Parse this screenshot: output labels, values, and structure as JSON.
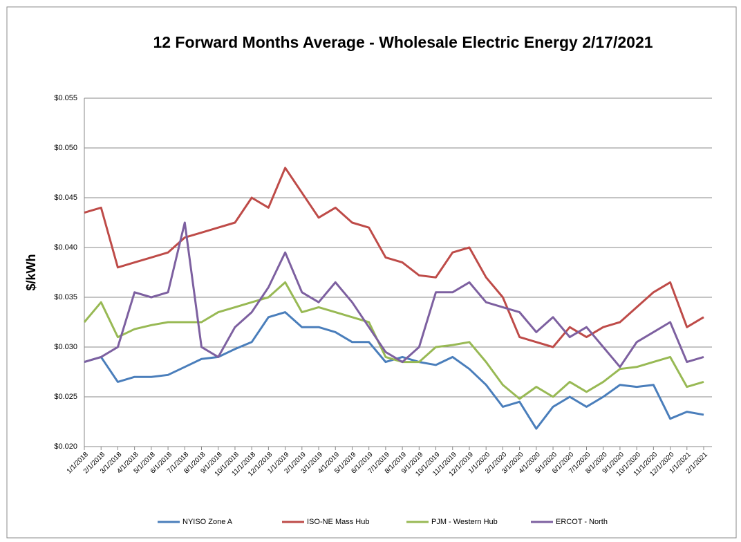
{
  "chart_data": {
    "type": "line",
    "title": "12 Forward Months Average - Wholesale Electric Energy 2/17/2021",
    "y_label": "$/kWh",
    "x": [
      "1/1/2018",
      "2/1/2018",
      "3/1/2018",
      "4/1/2018",
      "5/1/2018",
      "6/1/2018",
      "7/1/2018",
      "8/1/2018",
      "9/1/2018",
      "10/1/2018",
      "11/1/2018",
      "12/1/2018",
      "1/1/2019",
      "2/1/2019",
      "3/1/2019",
      "4/1/2019",
      "5/1/2019",
      "6/1/2019",
      "7/1/2019",
      "8/1/2019",
      "9/1/2019",
      "10/1/2019",
      "11/1/2019",
      "12/1/2019",
      "1/1/2020",
      "2/1/2020",
      "3/1/2020",
      "4/1/2020",
      "5/1/2020",
      "6/1/2020",
      "7/1/2020",
      "8/1/2020",
      "9/1/2020",
      "10/1/2020",
      "11/1/2020",
      "12/1/2020",
      "1/1/2021",
      "2/1/2021"
    ],
    "series": [
      {
        "name": "NYISO Zone A",
        "color": "#4a7ebb",
        "values": [
          0.0285,
          0.029,
          0.0265,
          0.027,
          0.027,
          0.0272,
          0.028,
          0.0288,
          0.029,
          0.0298,
          0.0305,
          0.033,
          0.0335,
          0.032,
          0.032,
          0.0315,
          0.0305,
          0.0305,
          0.0285,
          0.029,
          0.0285,
          0.0282,
          0.029,
          0.0278,
          0.0262,
          0.024,
          0.0245,
          0.0218,
          0.024,
          0.025,
          0.024,
          0.025,
          0.0262,
          0.026,
          0.0262,
          0.0228,
          0.0235,
          0.0232
        ]
      },
      {
        "name": "ISO-NE Mass Hub",
        "color": "#be4b48",
        "values": [
          0.0435,
          0.044,
          0.038,
          0.0385,
          0.039,
          0.0395,
          0.041,
          0.0415,
          0.042,
          0.0425,
          0.045,
          0.044,
          0.048,
          0.0455,
          0.043,
          0.044,
          0.0425,
          0.042,
          0.039,
          0.0385,
          0.0372,
          0.037,
          0.0395,
          0.04,
          0.037,
          0.035,
          0.031,
          0.0305,
          0.03,
          0.032,
          0.031,
          0.032,
          0.0325,
          0.034,
          0.0355,
          0.0365,
          0.032,
          0.033
        ]
      },
      {
        "name": "PJM - Western Hub",
        "color": "#98b954",
        "values": [
          0.0325,
          0.0345,
          0.031,
          0.0318,
          0.0322,
          0.0325,
          0.0325,
          0.0325,
          0.0335,
          0.034,
          0.0345,
          0.035,
          0.0365,
          0.0335,
          0.034,
          0.0335,
          0.033,
          0.0325,
          0.029,
          0.0285,
          0.0285,
          0.03,
          0.0302,
          0.0305,
          0.0285,
          0.0262,
          0.0248,
          0.026,
          0.025,
          0.0265,
          0.0255,
          0.0265,
          0.0278,
          0.028,
          0.0285,
          0.029,
          0.026,
          0.0265
        ]
      },
      {
        "name": "ERCOT - North",
        "color": "#7d60a0",
        "values": [
          0.0285,
          0.029,
          0.03,
          0.0355,
          0.035,
          0.0355,
          0.0425,
          0.03,
          0.029,
          0.032,
          0.0335,
          0.036,
          0.0395,
          0.0355,
          0.0345,
          0.0365,
          0.0345,
          0.032,
          0.0295,
          0.0285,
          0.03,
          0.0355,
          0.0355,
          0.0365,
          0.0345,
          0.034,
          0.0335,
          0.0315,
          0.033,
          0.031,
          0.032,
          0.03,
          0.028,
          0.0305,
          0.0315,
          0.0325,
          0.0285,
          0.029
        ]
      }
    ],
    "ylim": [
      0.02,
      0.055
    ],
    "yticks": [
      {
        "value": 0.02,
        "label": "$0.020"
      },
      {
        "value": 0.025,
        "label": "$0.025"
      },
      {
        "value": 0.03,
        "label": "$0.030"
      },
      {
        "value": 0.035,
        "label": "$0.035"
      },
      {
        "value": 0.04,
        "label": "$0.040"
      },
      {
        "value": 0.045,
        "label": "$0.045"
      },
      {
        "value": 0.05,
        "label": "$0.050"
      },
      {
        "value": 0.055,
        "label": "$0.055"
      }
    ],
    "grid": true,
    "legend": "bottom"
  }
}
